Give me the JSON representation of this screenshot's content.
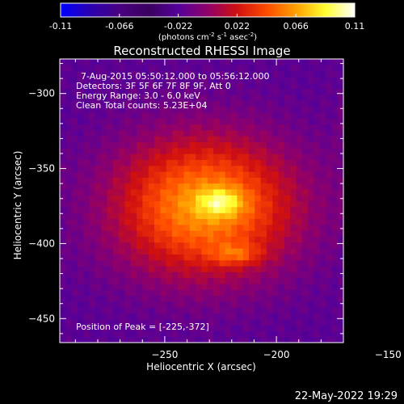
{
  "chart_data": {
    "type": "heatmap",
    "title": "Reconstructed RHESSI Image",
    "xlabel": "Heliocentric X (arcsec)",
    "ylabel": "Heliocentric Y (arcsec)",
    "xlim": [
      -297,
      -170
    ],
    "ylim": [
      -466,
      -277
    ],
    "x_ticks": [
      -250,
      -200,
      -150
    ],
    "y_ticks": [
      -300,
      -350,
      -400,
      -450
    ],
    "colorbar": {
      "range": [
        -0.11,
        0.11
      ],
      "ticks": [
        "-0.11",
        "-0.066",
        "-0.022",
        "0.022",
        "0.066",
        "0.11"
      ],
      "units_prefix": "(photons cm",
      "units_exp1": "-2",
      "units_mid": " s",
      "units_exp2": "-1",
      "units_mid2": " asec",
      "units_exp3": "-2",
      "units_suffix": ")",
      "colors": [
        "#0000ff",
        "#2a00b0",
        "#4a0080",
        "#3a0060",
        "#55009a",
        "#90006a",
        "#d01010",
        "#ff4a00",
        "#ffa000",
        "#ffff30",
        "#ffffff"
      ]
    },
    "annotations": {
      "time_range": "7-Aug-2015 05:50:12.000 to 05:56:12.000",
      "detectors": "Detectors: 3F 5F 6F 7F 8F 9F, Att 0",
      "energy": "Energy Range: 3.0 - 6.0 keV",
      "clean": "Clean     Total counts: 5.23E+04",
      "peak": "Position of Peak = [-225,-372]"
    },
    "sources": [
      {
        "x": -225,
        "y": -372,
        "peak": 0.11
      },
      {
        "x": -218,
        "y": -407,
        "peak": 0.095
      }
    ],
    "background_level": -0.02,
    "timestamp": "22-May-2022 19:29"
  }
}
